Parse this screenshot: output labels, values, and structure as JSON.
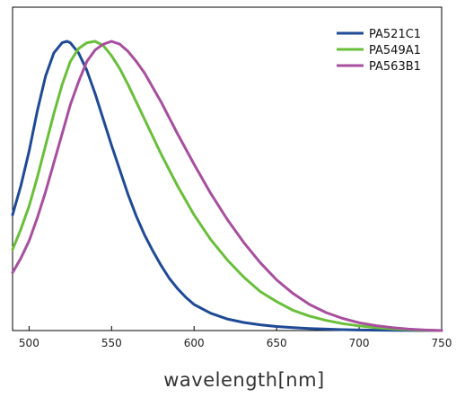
{
  "chart_data": {
    "type": "line",
    "title": "",
    "xlabel": "wavelength[nm]",
    "ylabel": "",
    "xlim": [
      490,
      750
    ],
    "ylim": [
      0,
      1.0
    ],
    "xticks": [
      500,
      550,
      600,
      650,
      700,
      750
    ],
    "legend_position": "top-right",
    "grid": false,
    "series": [
      {
        "name": "PA521C1",
        "color": "#1f4a96",
        "x": [
          490,
          495,
          500,
          505,
          510,
          515,
          520,
          523,
          525,
          530,
          535,
          540,
          545,
          550,
          555,
          560,
          565,
          570,
          575,
          580,
          585,
          590,
          595,
          600,
          610,
          620,
          630,
          640,
          650,
          660,
          670,
          680,
          690,
          700,
          720,
          740,
          750
        ],
        "y": [
          0.4,
          0.5,
          0.62,
          0.76,
          0.88,
          0.96,
          0.995,
          1.0,
          0.995,
          0.96,
          0.9,
          0.82,
          0.73,
          0.64,
          0.555,
          0.47,
          0.395,
          0.33,
          0.275,
          0.225,
          0.18,
          0.145,
          0.115,
          0.09,
          0.06,
          0.04,
          0.028,
          0.02,
          0.014,
          0.01,
          0.007,
          0.005,
          0.003,
          0.002,
          0.001,
          0.0,
          0.0
        ]
      },
      {
        "name": "PA549A1",
        "color": "#6abf3a",
        "x": [
          490,
          495,
          500,
          505,
          510,
          515,
          520,
          525,
          530,
          535,
          540,
          545,
          550,
          555,
          560,
          570,
          580,
          590,
          600,
          610,
          620,
          630,
          640,
          650,
          660,
          670,
          680,
          690,
          700,
          710,
          720,
          730,
          740,
          750
        ],
        "y": [
          0.28,
          0.35,
          0.43,
          0.53,
          0.64,
          0.75,
          0.85,
          0.93,
          0.975,
          0.995,
          1.0,
          0.985,
          0.95,
          0.905,
          0.85,
          0.73,
          0.61,
          0.5,
          0.4,
          0.315,
          0.245,
          0.185,
          0.135,
          0.1,
          0.07,
          0.05,
          0.035,
          0.024,
          0.016,
          0.01,
          0.006,
          0.003,
          0.001,
          0.0
        ]
      },
      {
        "name": "PA563B1",
        "color": "#a74f9e",
        "x": [
          490,
          495,
          500,
          505,
          510,
          515,
          520,
          525,
          530,
          535,
          540,
          545,
          550,
          555,
          560,
          565,
          570,
          580,
          590,
          600,
          610,
          620,
          630,
          640,
          650,
          660,
          670,
          680,
          690,
          700,
          710,
          720,
          730,
          740,
          750
        ],
        "y": [
          0.2,
          0.25,
          0.31,
          0.39,
          0.48,
          0.58,
          0.68,
          0.78,
          0.86,
          0.93,
          0.97,
          0.99,
          1.0,
          0.99,
          0.965,
          0.93,
          0.89,
          0.79,
          0.68,
          0.575,
          0.475,
          0.385,
          0.305,
          0.235,
          0.175,
          0.128,
          0.09,
          0.062,
          0.042,
          0.027,
          0.017,
          0.01,
          0.005,
          0.002,
          0.0
        ]
      }
    ]
  }
}
